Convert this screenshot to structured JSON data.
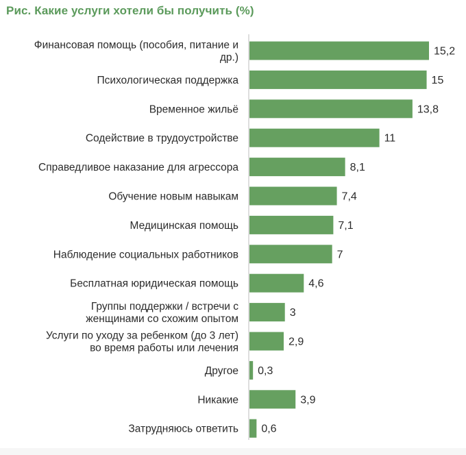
{
  "chart_data": {
    "type": "bar",
    "orientation": "horizontal",
    "title": "Рис. Какие услуги хотели бы получить (%)",
    "categories": [
      [
        "Финансовая помощь (пособия, питание и",
        "др.)"
      ],
      [
        "Психологическая поддержка"
      ],
      [
        "Временное жильё"
      ],
      [
        "Содействие в трудоустройстве"
      ],
      [
        "Справедливое наказание для агрессора"
      ],
      [
        "Обучение новым навыкам"
      ],
      [
        "Медицинская помощь"
      ],
      [
        "Наблюдение социальных работников"
      ],
      [
        "Бесплатная юридическая помощь"
      ],
      [
        "Группы поддержки / встречи с",
        "женщинами со схожим опытом"
      ],
      [
        "Услуги по уходу за ребенком (до 3 лет)",
        "во время работы или лечения"
      ],
      [
        "Другое"
      ],
      [
        "Никакие"
      ],
      [
        "Затрудняюсь ответить"
      ]
    ],
    "values": [
      15.2,
      15,
      13.8,
      11,
      8.1,
      7.4,
      7.1,
      7,
      4.6,
      3,
      2.9,
      0.3,
      3.9,
      0.6
    ],
    "value_labels": [
      "15,2",
      "15",
      "13,8",
      "11",
      "8,1",
      "7,4",
      "7,1",
      "7",
      "4,6",
      "3",
      "2,9",
      "0,3",
      "3,9",
      "0,6"
    ],
    "xlim": [
      0,
      15.2
    ],
    "bar_color": "#66a060",
    "axis_color": "#bdbdbd",
    "title_color": "#5b9a5b",
    "grid": false,
    "legend": "none"
  }
}
